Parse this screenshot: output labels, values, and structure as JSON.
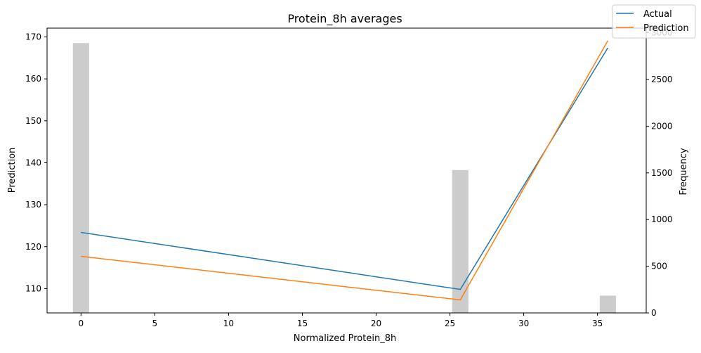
{
  "chart_data": {
    "type": "line",
    "title": "Protein_8h averages",
    "xlabel": "Normalized Protein_8h",
    "ylabel": "Prediction",
    "y2label": "Frequency",
    "xlim": [
      -2.3,
      38.3
    ],
    "ylim": [
      104.2,
      172.1
    ],
    "y2lim": [
      0,
      3050
    ],
    "x_ticks": [
      0,
      5,
      10,
      15,
      20,
      25,
      30,
      35
    ],
    "y_ticks": [
      110,
      120,
      130,
      140,
      150,
      160,
      170
    ],
    "y2_ticks": [
      0,
      500,
      1000,
      1500,
      2000,
      2500,
      3000
    ],
    "grid": false,
    "legend_position": "top-right",
    "series": [
      {
        "name": "Actual",
        "color": "#1f77b4",
        "x": [
          0,
          25.7,
          35.7
        ],
        "y": [
          123.4,
          109.8,
          167.4
        ]
      },
      {
        "name": "Prediction",
        "color": "#ff7f0e",
        "x": [
          0,
          25.7,
          35.7
        ],
        "y": [
          117.7,
          107.3,
          169.1
        ]
      }
    ],
    "histogram": {
      "color": "#cccccc",
      "width": 1.1,
      "x": [
        0,
        25.7,
        35.7
      ],
      "values": [
        2890,
        1530,
        185
      ]
    }
  }
}
